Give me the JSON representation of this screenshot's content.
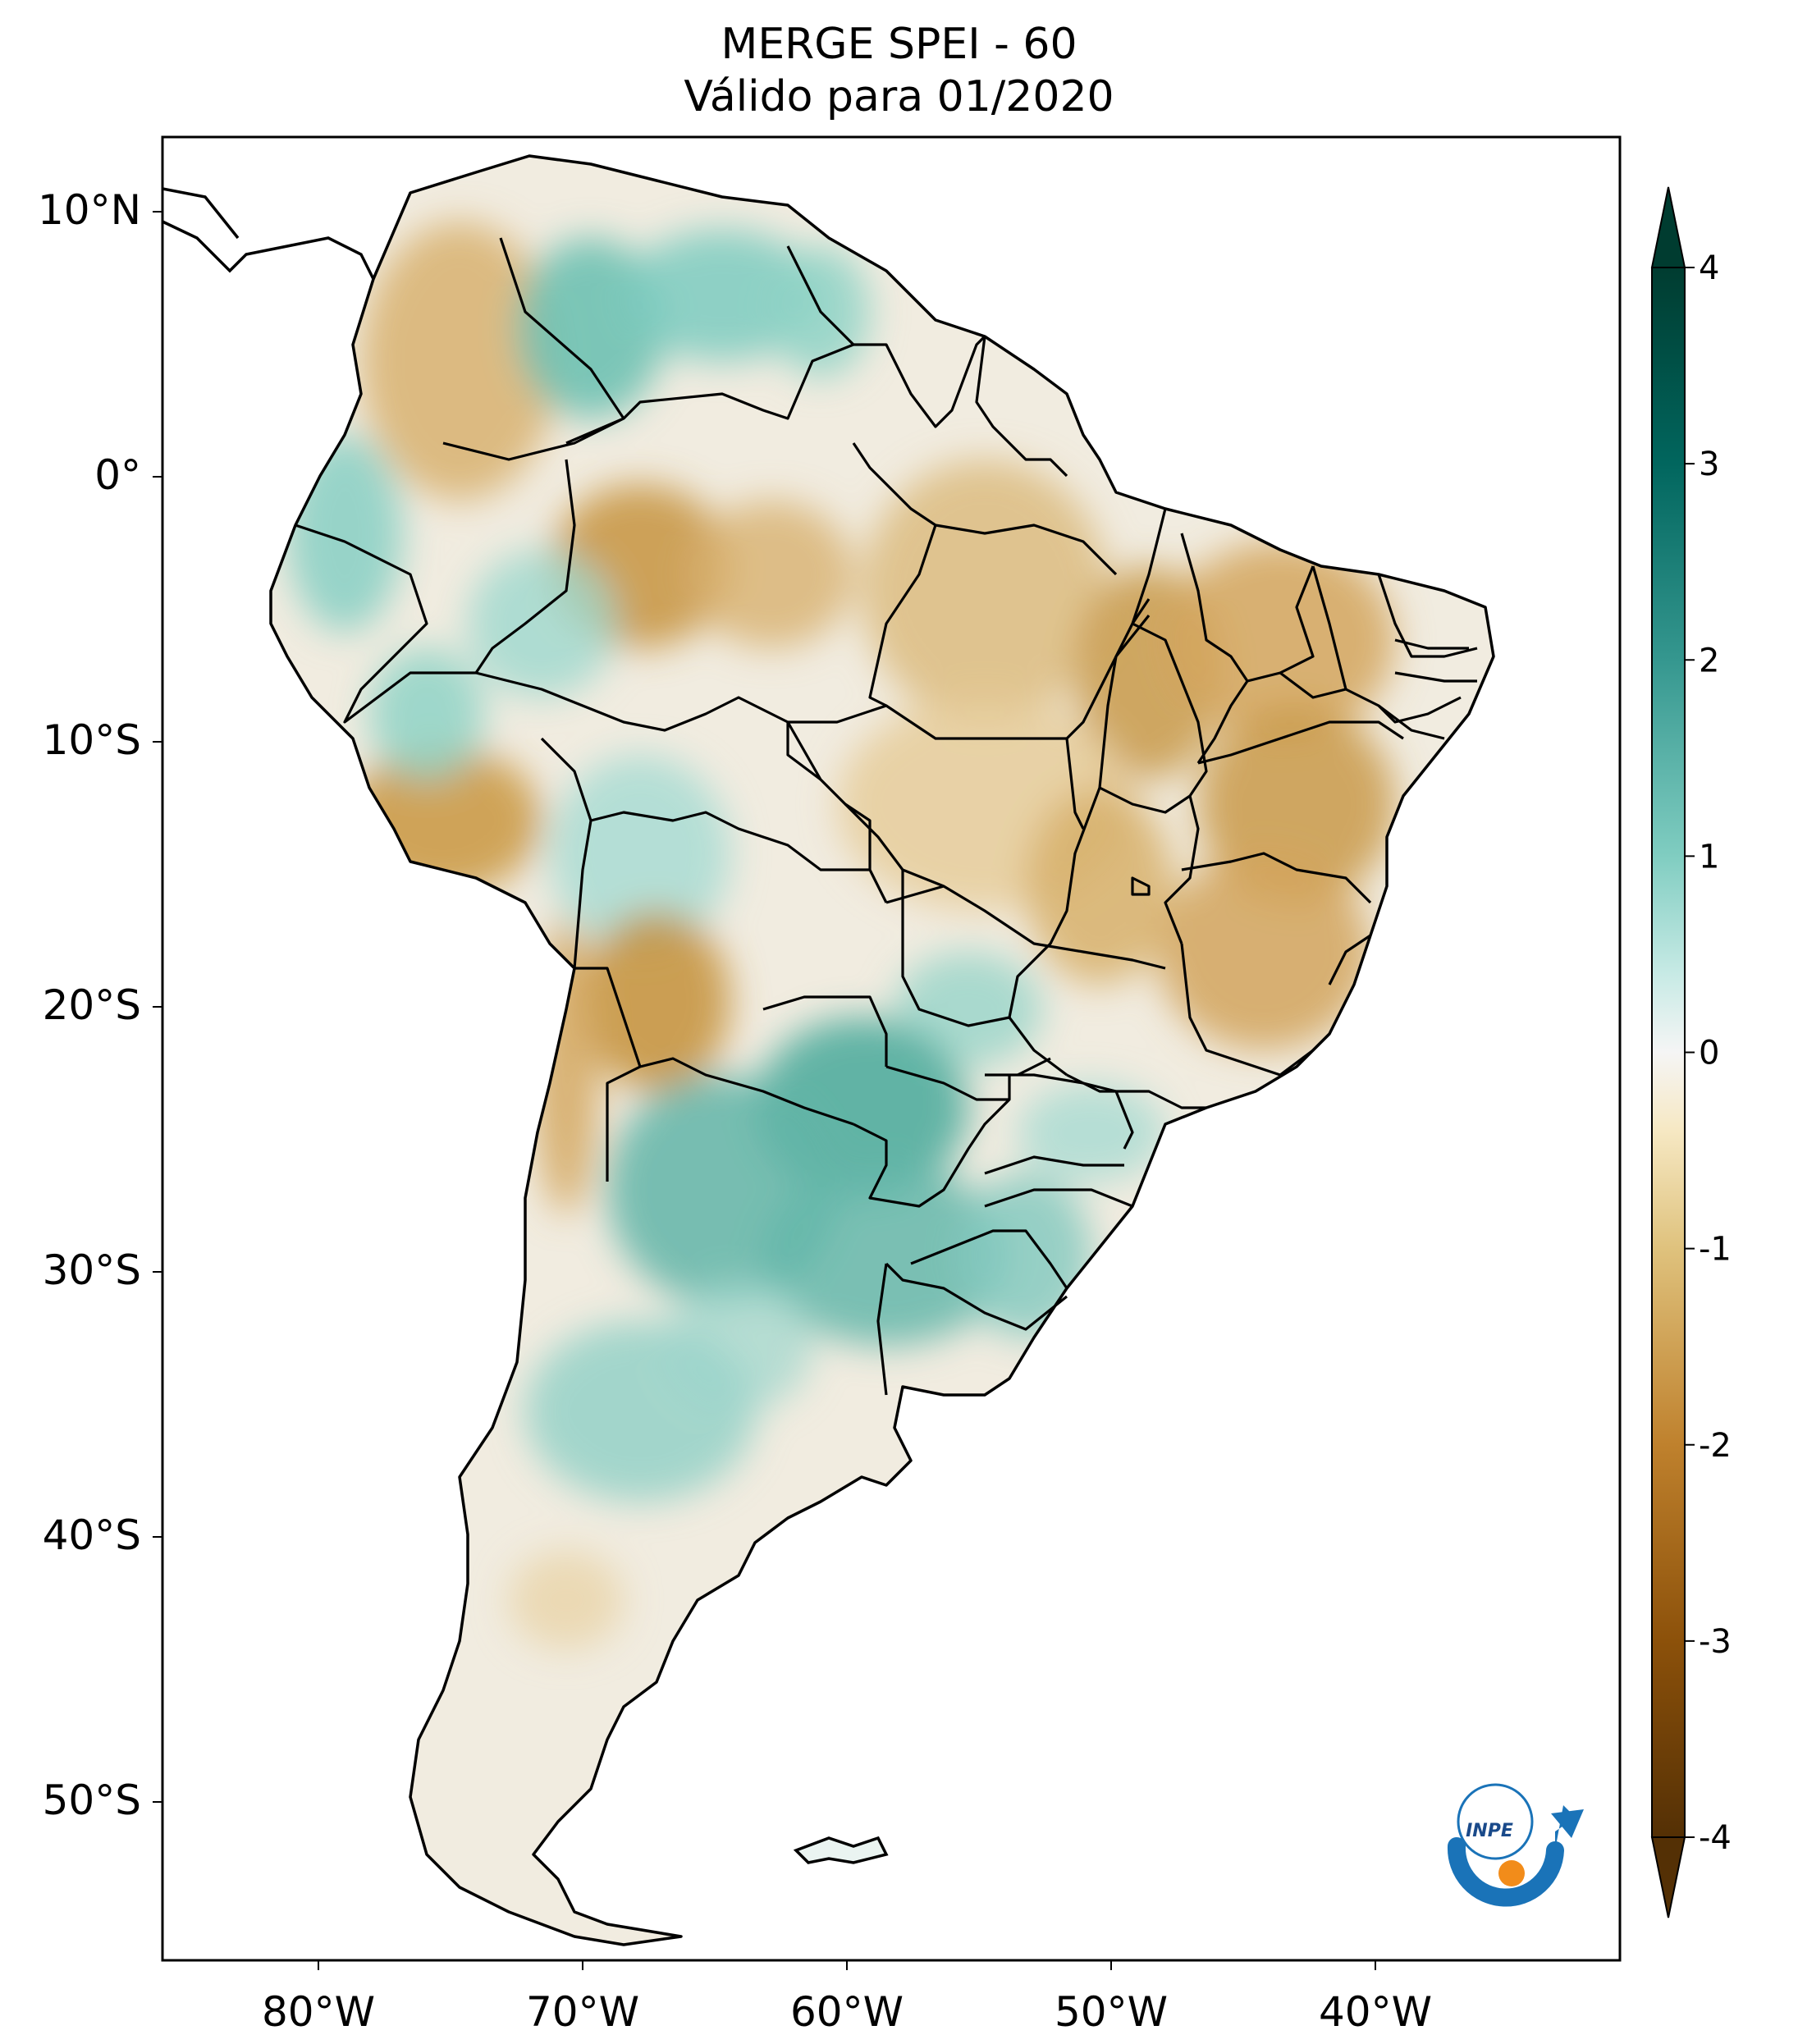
{
  "title": {
    "line1": "MERGE   SPEI - 60",
    "line2": "Válido para 01/2020"
  },
  "axes": {
    "lat_labels": [
      "10°N",
      "0°",
      "10°S",
      "20°S",
      "30°S",
      "40°S",
      "50°S"
    ],
    "lon_labels": [
      "80°W",
      "70°W",
      "60°W",
      "50°W",
      "40°W"
    ]
  },
  "colorbar": {
    "ticks": [
      "4",
      "3",
      "2",
      "1",
      "0",
      "-1",
      "-2",
      "-3",
      "-4"
    ],
    "colors": {
      "wet_max": "#003c30",
      "wet_mid": "#35978f",
      "wet_low": "#c7eae5",
      "neutral": "#f5f5f5",
      "dry_low": "#f6e8c3",
      "dry_mid": "#bf812d",
      "dry_max": "#543005"
    }
  },
  "logo": {
    "text": "INPE",
    "colors": {
      "blue": "#1a73b8",
      "orange": "#f28c1a"
    }
  }
}
